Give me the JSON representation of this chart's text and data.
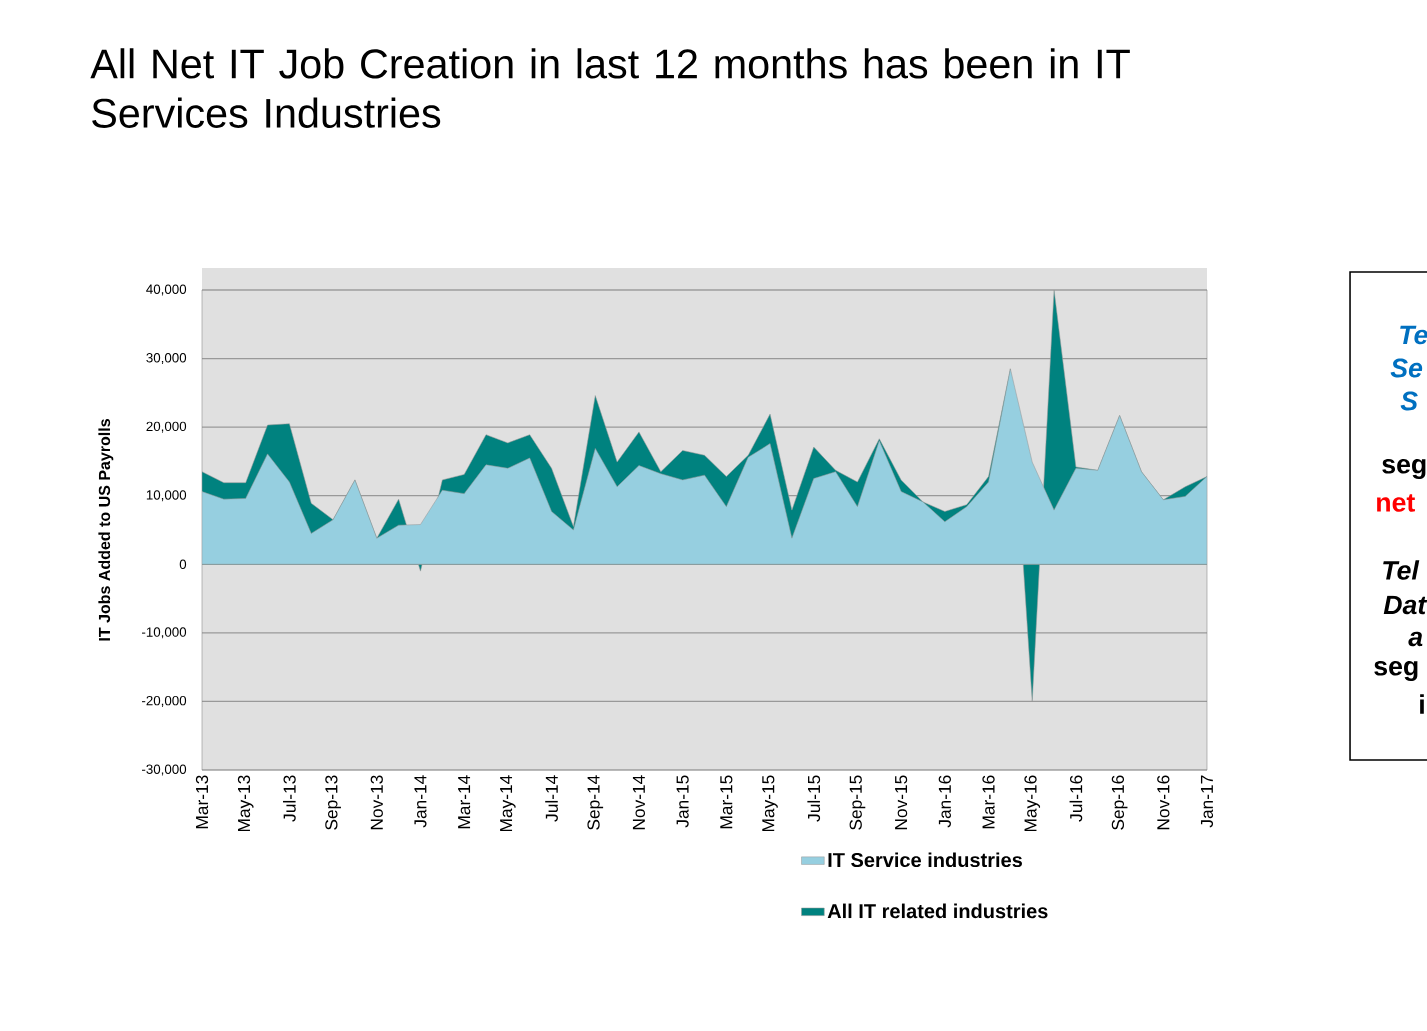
{
  "chart_data": {
    "type": "area",
    "title": "All Net IT Job Creation in last 12 months has been in IT Services Industries",
    "ylabel": "IT Jobs Added to US Payrolls",
    "categories": [
      "Mar-13",
      null,
      "May-13",
      null,
      "Jul-13",
      null,
      "Sep-13",
      null,
      "Nov-13",
      null,
      "Jan-14",
      null,
      "Mar-14",
      null,
      "May-14",
      null,
      "Jul-14",
      null,
      "Sep-14",
      null,
      "Nov-14",
      null,
      "Jan-15",
      null,
      "Mar-15",
      null,
      "May-15",
      null,
      "Jul-15",
      null,
      "Sep-15",
      null,
      "Nov-15",
      null,
      "Jan-16",
      null,
      "Mar-16",
      null,
      "May-16",
      null,
      "Jul-16",
      null,
      "Sep-16",
      null,
      "Nov-16",
      null,
      "Jan-17"
    ],
    "series": [
      {
        "name": "IT Service industries",
        "color": "#96cfe0",
        "values": [
          10600,
          9500,
          9600,
          16100,
          12000,
          4500,
          6500,
          12300,
          3800,
          5700,
          5800,
          10800,
          10300,
          14500,
          14000,
          15500,
          7700,
          5000,
          16900,
          11300,
          14400,
          13200,
          12300,
          13000,
          8400,
          15600,
          17600,
          3800,
          12500,
          13500,
          8400,
          18000,
          10600,
          9100,
          6200,
          8400,
          12000,
          28500,
          14900,
          7900,
          14000,
          13700,
          21700,
          13500,
          9400,
          9900,
          12800
        ]
      },
      {
        "name": "All IT related industries",
        "color": "#00827f",
        "values": [
          13500,
          11900,
          11900,
          20300,
          20500,
          8900,
          6500,
          12300,
          3800,
          9500,
          -1000,
          12300,
          13100,
          18900,
          17700,
          18900,
          14000,
          5500,
          24600,
          14900,
          19300,
          13500,
          16600,
          15900,
          12800,
          15900,
          21900,
          7900,
          17100,
          13700,
          12000,
          18300,
          12300,
          9100,
          7700,
          8700,
          12800,
          28500,
          -20000,
          40000,
          14200,
          13700,
          21700,
          13500,
          9400,
          11300,
          12800
        ]
      }
    ],
    "ylim": [
      -30000,
      40000
    ],
    "yticks": [
      {
        "value": -30000,
        "label": "-30,000"
      },
      {
        "value": -20000,
        "label": "-20,000"
      },
      {
        "value": -10000,
        "label": "-10,000"
      },
      {
        "value": 0,
        "label": "0"
      },
      {
        "value": 10000,
        "label": "10,000"
      },
      {
        "value": 20000,
        "label": "20,000"
      },
      {
        "value": 30000,
        "label": "30,000"
      },
      {
        "value": 40000,
        "label": "40,000"
      }
    ],
    "grid": "y",
    "legend": "bottom",
    "annotations": [
      "Te",
      "Se",
      "S",
      "seg",
      "net",
      "Tel",
      "Dat",
      "a",
      "seg",
      "i"
    ]
  }
}
